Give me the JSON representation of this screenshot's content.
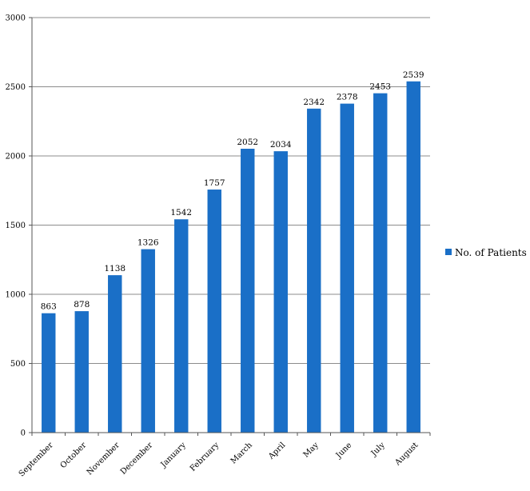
{
  "chart_data": {
    "type": "bar",
    "categories": [
      "September",
      "October",
      "November",
      "December",
      "January",
      "February",
      "March",
      "April",
      "May",
      "June",
      "July",
      "August"
    ],
    "series": [
      {
        "name": "No. of Patients",
        "values": [
          863,
          878,
          1138,
          1326,
          1542,
          1757,
          2052,
          2034,
          2342,
          2378,
          2453,
          2539
        ],
        "color": "#1a6fc7"
      }
    ],
    "title": "",
    "xlabel": "",
    "ylabel": "",
    "ylim": [
      0,
      3000
    ],
    "yticks": [
      0,
      500,
      1000,
      1500,
      2000,
      2500,
      3000
    ],
    "grid": true,
    "legend_position": "right",
    "data_labels": true
  }
}
